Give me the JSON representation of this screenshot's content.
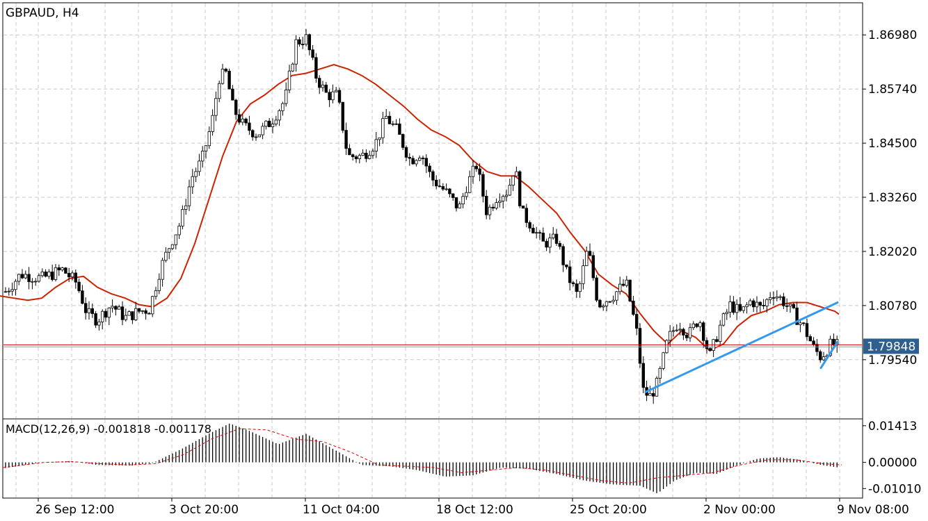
{
  "symbol_title": "GBPAUD, H4",
  "macd_label": "MACD(12,26,9) -0.001818 -0.001178",
  "colors": {
    "background": "#ffffff",
    "grid": "#c8c8c8",
    "candle": "#000000",
    "moving_average": "#cc2200",
    "trendline": "#3399ee",
    "bid_line": "#cc0000",
    "ask_line": "#8899cc",
    "price_tag_bg": "#2f5f8f",
    "macd_hist": "#000000",
    "macd_signal": "#dd0000"
  },
  "chart_data": [
    {
      "type": "candlestick",
      "title": "GBPAUD, H4",
      "x_ticks": [
        "26 Sep 12:00",
        "3 Oct 20:00",
        "11 Oct 04:00",
        "18 Oct 12:00",
        "25 Oct 20:00",
        "2 Nov 00:00",
        "9 Nov 08:00"
      ],
      "y_ticks": [
        "1.86980",
        "1.85740",
        "1.84500",
        "1.83260",
        "1.82020",
        "1.80780",
        "1.79540"
      ],
      "ylim": [
        1.782,
        1.877
      ],
      "current_price": "1.79848",
      "current_price_value": 1.79848,
      "moving_average_path": [
        [
          0,
          1.81
        ],
        [
          20,
          1.8095
        ],
        [
          40,
          1.809
        ],
        [
          60,
          1.8095
        ],
        [
          80,
          1.812
        ],
        [
          100,
          1.814
        ],
        [
          120,
          1.8145
        ],
        [
          140,
          1.812
        ],
        [
          160,
          1.8105
        ],
        [
          180,
          1.8095
        ],
        [
          200,
          1.808
        ],
        [
          220,
          1.8075
        ],
        [
          240,
          1.8095
        ],
        [
          260,
          1.814
        ],
        [
          280,
          1.822
        ],
        [
          300,
          1.832
        ],
        [
          320,
          1.842
        ],
        [
          340,
          1.85
        ],
        [
          360,
          1.854
        ],
        [
          380,
          1.856
        ],
        [
          400,
          1.8585
        ],
        [
          420,
          1.8605
        ],
        [
          440,
          1.861
        ],
        [
          460,
          1.862
        ],
        [
          480,
          1.863
        ],
        [
          500,
          1.862
        ],
        [
          520,
          1.8605
        ],
        [
          540,
          1.8585
        ],
        [
          560,
          1.856
        ],
        [
          580,
          1.8535
        ],
        [
          600,
          1.8505
        ],
        [
          620,
          1.848
        ],
        [
          640,
          1.8465
        ],
        [
          660,
          1.8445
        ],
        [
          680,
          1.841
        ],
        [
          700,
          1.8385
        ],
        [
          720,
          1.8375
        ],
        [
          740,
          1.8375
        ],
        [
          760,
          1.835
        ],
        [
          780,
          1.832
        ],
        [
          800,
          1.829
        ],
        [
          820,
          1.8245
        ],
        [
          840,
          1.8205
        ],
        [
          860,
          1.815
        ],
        [
          880,
          1.8125
        ],
        [
          900,
          1.8105
        ],
        [
          920,
          1.806
        ],
        [
          940,
          1.802
        ],
        [
          960,
          1.799
        ],
        [
          980,
          1.802
        ],
        [
          1000,
          1.8005
        ],
        [
          1020,
          1.7975
        ],
        [
          1040,
          1.799
        ],
        [
          1060,
          1.803
        ],
        [
          1080,
          1.8055
        ],
        [
          1100,
          1.8065
        ],
        [
          1120,
          1.808
        ],
        [
          1140,
          1.8085
        ],
        [
          1160,
          1.8085
        ],
        [
          1180,
          1.8075
        ],
        [
          1200,
          1.8065
        ],
        [
          1206,
          1.8058
        ]
      ],
      "trendlines": [
        {
          "x1": 928,
          "y1": 1.788,
          "x2": 1204,
          "y2": 1.8085
        },
        {
          "x1": 1180,
          "y1": 1.7935,
          "x2": 1204,
          "y2": 1.7995
        }
      ]
    },
    {
      "type": "bar",
      "title": "MACD(12,26,9) -0.001818 -0.001178",
      "y_ticks": [
        "0.01413",
        "0.00000",
        "-0.01010"
      ],
      "ylim": [
        -0.0135,
        0.0165
      ],
      "signal_path": [
        [
          0,
          -0.002
        ],
        [
          60,
          0.0
        ],
        [
          100,
          0.0003
        ],
        [
          140,
          -0.0005
        ],
        [
          180,
          -0.001
        ],
        [
          220,
          -0.0005
        ],
        [
          260,
          0.003
        ],
        [
          300,
          0.009
        ],
        [
          340,
          0.013
        ],
        [
          380,
          0.0125
        ],
        [
          420,
          0.009
        ],
        [
          460,
          0.008
        ],
        [
          500,
          0.004
        ],
        [
          540,
          -0.001
        ],
        [
          580,
          -0.0015
        ],
        [
          620,
          -0.002
        ],
        [
          660,
          -0.004
        ],
        [
          700,
          -0.003
        ],
        [
          740,
          -0.002
        ],
        [
          780,
          -0.003
        ],
        [
          820,
          -0.005
        ],
        [
          860,
          -0.007
        ],
        [
          900,
          -0.008
        ],
        [
          940,
          -0.006
        ],
        [
          980,
          -0.005
        ],
        [
          1020,
          -0.004
        ],
        [
          1060,
          -0.001
        ],
        [
          1100,
          0.001
        ],
        [
          1140,
          0.001
        ],
        [
          1180,
          -0.0005
        ],
        [
          1206,
          -0.001
        ]
      ]
    }
  ]
}
